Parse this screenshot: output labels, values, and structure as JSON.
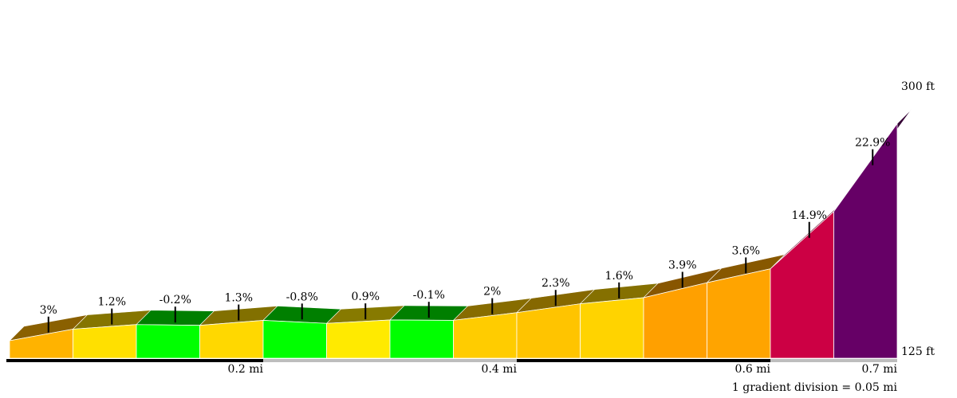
{
  "chart_data": {
    "type": "area",
    "title": "",
    "xlabel": "",
    "ylabel": "",
    "x_unit": "mi",
    "y_unit": "ft",
    "ylim": [
      125,
      300
    ],
    "xlim": [
      0,
      0.7
    ],
    "y_labels": [
      "300 ft",
      "125 ft"
    ],
    "x_ticks": [
      {
        "value": 0.2,
        "label": "0.2 mi"
      },
      {
        "value": 0.4,
        "label": "0.4 mi"
      },
      {
        "value": 0.6,
        "label": "0.6 mi"
      },
      {
        "value": 0.7,
        "label": "0.7 mi"
      }
    ],
    "segment_length_mi": 0.05,
    "gradients": [
      3,
      1.2,
      -0.2,
      1.3,
      -0.8,
      0.9,
      -0.1,
      2,
      2.3,
      1.6,
      3.9,
      3.6,
      14.9,
      22.9
    ],
    "gradient_labels": [
      "3%",
      "1.2%",
      "-0.2%",
      "1.3%",
      "-0.8%",
      "0.9%",
      "-0.1%",
      "2%",
      "2.3%",
      "1.6%",
      "3.9%",
      "3.6%",
      "14.9%",
      "22.9%"
    ],
    "segment_colors": [
      "#ffb300",
      "#ffe000",
      "#00ff00",
      "#ffd800",
      "#00ff00",
      "#ffea00",
      "#00ff00",
      "#ffcc00",
      "#ffc400",
      "#ffd300",
      "#ffa000",
      "#ffa400",
      "#cc0044",
      "#660066"
    ],
    "top_colors": [
      "#8a6000",
      "#857500",
      "#007f00",
      "#827000",
      "#007f00",
      "#877a00",
      "#007f00",
      "#876c00",
      "#866800",
      "#857000",
      "#885600",
      "#875800",
      "#660022",
      "#330033"
    ],
    "scale_note": "1 gradient division = 0.05 mi"
  }
}
